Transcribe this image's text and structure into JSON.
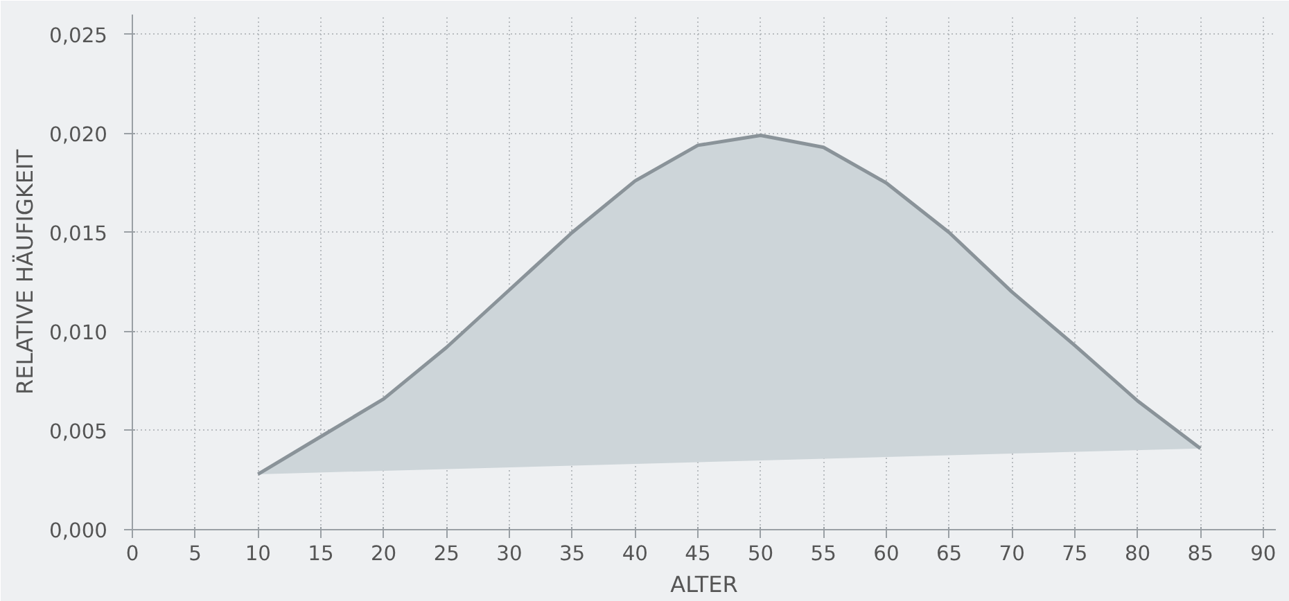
{
  "chart_data": {
    "type": "area",
    "xlabel": "ALTER",
    "ylabel": "RELATIVE HÄUFIGKEIT",
    "x": [
      10,
      15,
      20,
      25,
      30,
      35,
      40,
      45,
      50,
      55,
      60,
      65,
      70,
      75,
      80,
      85
    ],
    "series": [
      {
        "color": "#8a9399",
        "values": [
          0.0028,
          0.0047,
          0.0066,
          0.0092,
          0.0121,
          0.015,
          0.0176,
          0.0194,
          0.0199,
          0.0193,
          0.0175,
          0.015,
          0.012,
          0.0093,
          0.0065,
          0.0041
        ]
      }
    ],
    "xlim": [
      0,
      91
    ],
    "ylim": [
      0,
      0.026
    ],
    "xticks": [
      0,
      5,
      10,
      15,
      20,
      25,
      30,
      35,
      40,
      45,
      50,
      55,
      60,
      65,
      70,
      75,
      80,
      85,
      90
    ],
    "yticks": [
      {
        "value": 0,
        "label": "0,000"
      },
      {
        "value": 0.005,
        "label": "0,005"
      },
      {
        "value": 0.01,
        "label": "0,010"
      },
      {
        "value": 0.015,
        "label": "0,015"
      },
      {
        "value": 0.02,
        "label": "0,020"
      },
      {
        "value": 0.025,
        "label": "0,025"
      }
    ],
    "grid": true,
    "line_style": "solid"
  }
}
